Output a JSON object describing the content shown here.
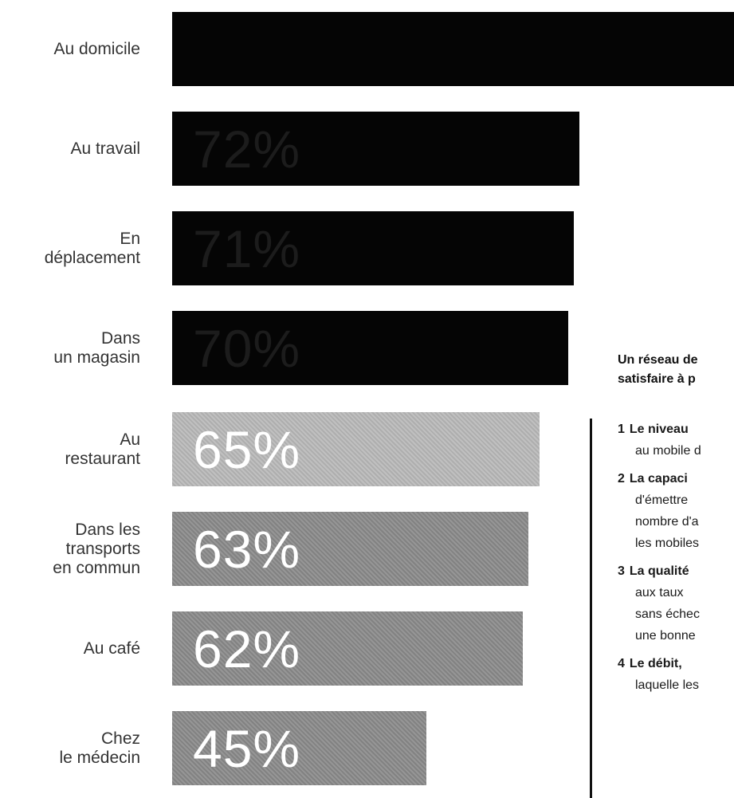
{
  "chart_data": {
    "type": "bar",
    "orientation": "horizontal",
    "title": "",
    "xlabel": "",
    "ylabel": "",
    "categories": [
      "Au domicile",
      "Au travail",
      "En\ndéplacement",
      "Dans\nun magasin",
      "Au\nrestaurant",
      "Dans les\ntransports\nen commun",
      "Au café",
      "Chez\nle médecin"
    ],
    "values": [
      null,
      72,
      71,
      70,
      65,
      63,
      62,
      45
    ],
    "value_labels": [
      "",
      "72%",
      "71%",
      "70%",
      "65%",
      "63%",
      "62%",
      "45%"
    ],
    "unit": "%",
    "bar_styles": [
      "dark",
      "dark",
      "dark",
      "dark",
      "light",
      "medium",
      "medium",
      "medium"
    ],
    "colors": {
      "dark": "#050505",
      "light": "#b9b9b9",
      "medium": "#8a8a8a",
      "label_on_dark": "#1c1c1c",
      "label_on_light": "#ffffff"
    }
  },
  "side_panel": {
    "title_lines": [
      "Un réseau de",
      "satisfaire à p"
    ],
    "items": [
      {
        "num": "1",
        "lead": "Le niveau",
        "lines": [
          "au mobile d"
        ]
      },
      {
        "num": "2",
        "lead": "La capaci",
        "lines": [
          "d'émettre",
          "nombre d'a",
          "les mobiles"
        ]
      },
      {
        "num": "3",
        "lead": "La qualité",
        "lines": [
          "aux taux",
          "sans échec",
          "une bonne"
        ]
      },
      {
        "num": "4",
        "lead": "Le débit,",
        "lines": [
          "laquelle les"
        ]
      }
    ]
  }
}
